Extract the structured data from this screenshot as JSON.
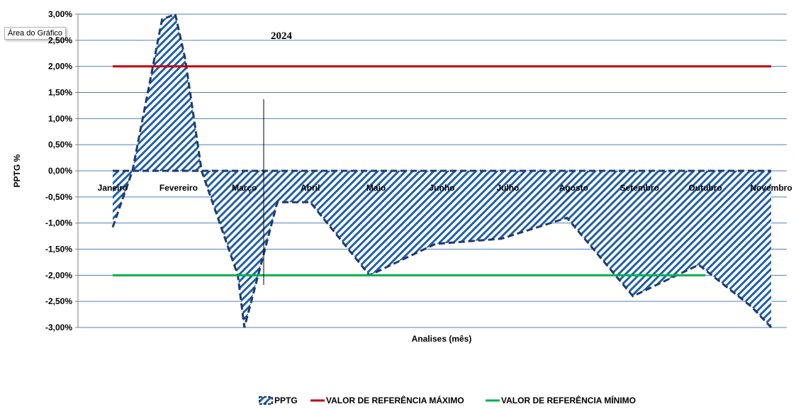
{
  "tooltip": "Área do Gráfico",
  "chart_data": {
    "type": "area",
    "title": "2024",
    "xlabel": "Analises (mês)",
    "ylabel": "PPTG %",
    "ylim": [
      -3.0,
      3.0
    ],
    "yticks": [
      "3,00%",
      "2,50%",
      "2,00%",
      "1,50%",
      "1,00%",
      "0,50%",
      "0,00%",
      "-0,50%",
      "-1,00%",
      "-1,50%",
      "-2,00%",
      "-2,50%",
      "-3,00%"
    ],
    "categories": [
      "Janeiro",
      "Fevereiro",
      "Março",
      "Abril",
      "Maio",
      "Junho",
      "Julho",
      "Agosto",
      "Setembro",
      "Outubro",
      "Novembro"
    ],
    "series": [
      {
        "name": "PPTG",
        "kind": "area",
        "color": "#1f5fae",
        "border": "#1f3a6b",
        "points": [
          {
            "x": 0.0,
            "y": -1.08
          },
          {
            "x": 0.3,
            "y": 0.0
          },
          {
            "x": 0.75,
            "y": 2.9
          },
          {
            "x": 0.95,
            "y": 3.0
          },
          {
            "x": 1.1,
            "y": 2.15
          },
          {
            "x": 1.35,
            "y": 0.0
          },
          {
            "x": 1.9,
            "y": -2.0
          },
          {
            "x": 2.0,
            "y": -3.0
          },
          {
            "x": 2.5,
            "y": -0.6
          },
          {
            "x": 3.0,
            "y": -0.6
          },
          {
            "x": 3.9,
            "y": -2.0
          },
          {
            "x": 4.9,
            "y": -1.4
          },
          {
            "x": 5.9,
            "y": -1.3
          },
          {
            "x": 6.9,
            "y": -0.9
          },
          {
            "x": 7.9,
            "y": -2.4
          },
          {
            "x": 8.9,
            "y": -1.8
          },
          {
            "x": 9.7,
            "y": -2.6
          },
          {
            "x": 10.0,
            "y": -3.0
          }
        ]
      },
      {
        "name": "VALOR DE REFERÊNCIA MÁXIMO",
        "kind": "line",
        "color": "#c00000",
        "points": [
          {
            "x": 0.0,
            "y": 2.0
          },
          {
            "x": 10.0,
            "y": 2.0
          }
        ]
      },
      {
        "name": "VALOR DE REFERÊNCIA MÍNIMO",
        "kind": "line",
        "color": "#00b050",
        "points": [
          {
            "x": 0.0,
            "y": -2.0
          },
          {
            "x": 9.0,
            "y": -2.0
          }
        ]
      }
    ],
    "grid": "horizontal",
    "legend": "bottom"
  }
}
